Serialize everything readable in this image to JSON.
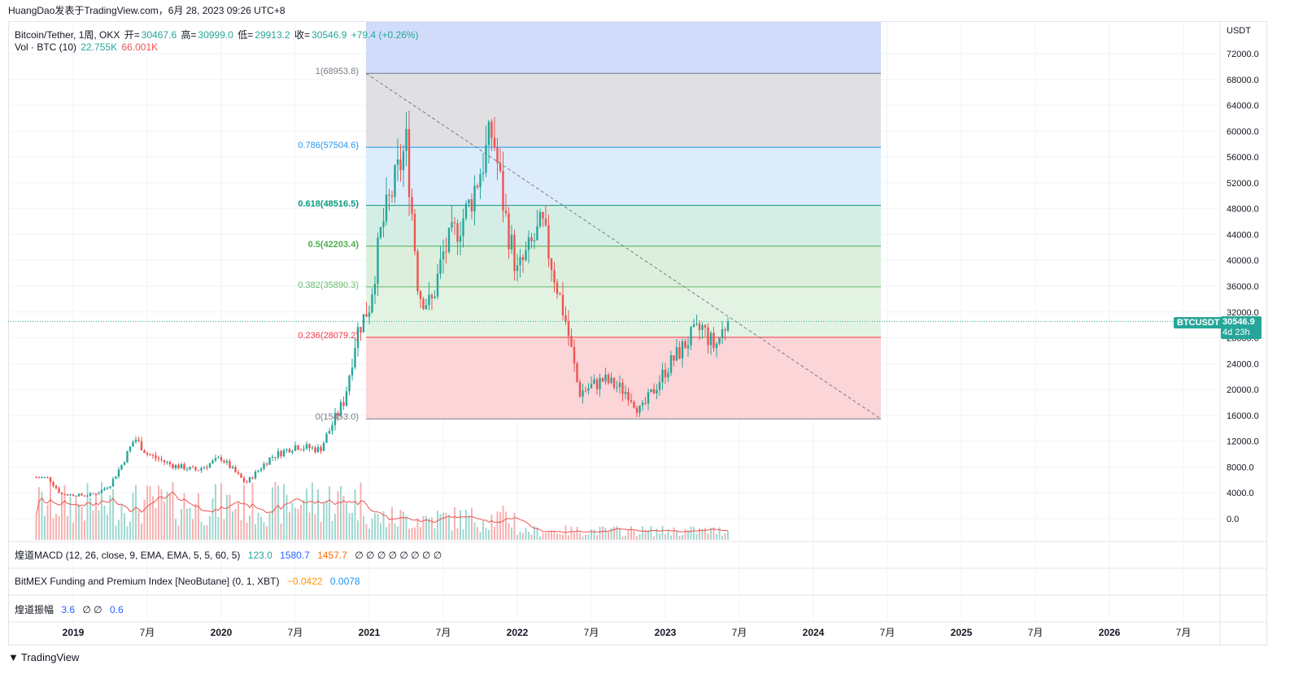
{
  "header": {
    "text": "HuangDao发表于TradingView.com，6月 28, 2023 09:26 UTC+8"
  },
  "legend": {
    "symbol": "Bitcoin/Tether, 1周, OKX",
    "open_label": "开=",
    "open": "30467.6",
    "high_label": "高=",
    "high": "30999.0",
    "low_label": "低=",
    "low": "29913.2",
    "close_label": "收=",
    "close": "30546.9",
    "change": "+79.4 (+0.26%)",
    "vol_label": "Vol · BTC (10)",
    "vol_value": "22.755K",
    "vol_ma": "66.001K"
  },
  "price_axis": {
    "currency": "USDT",
    "ticks": [
      "72000.0",
      "68000.0",
      "64000.0",
      "60000.0",
      "56000.0",
      "52000.0",
      "48000.0",
      "44000.0",
      "40000.0",
      "36000.0",
      "32000.0",
      "28000.0",
      "24000.0",
      "20000.0",
      "16000.0",
      "12000.0",
      "8000.0",
      "4000.0",
      "0.0"
    ],
    "last_price_symbol": "BTCUSDT",
    "last_price": "30546.9",
    "countdown": "4d 23h"
  },
  "time_axis": {
    "labels": [
      "2019",
      "7月",
      "2020",
      "7月",
      "2021",
      "7月",
      "2022",
      "7月",
      "2023",
      "7月",
      "2024",
      "7月",
      "2025",
      "7月",
      "2026",
      "7月"
    ]
  },
  "fib": {
    "levels": [
      {
        "label": "1(68953.8)",
        "ratio": 1,
        "price": 68953.8,
        "color": "#787b86",
        "fill": "#e0e0e3"
      },
      {
        "label": "0.786(57504.6)",
        "ratio": 0.786,
        "price": 57504.6,
        "color": "#2196f3",
        "fill": "#ddecfb"
      },
      {
        "label": "0.618(48516.5)",
        "ratio": 0.618,
        "price": 48516.5,
        "color": "#089981",
        "fill": "#d4eee6"
      },
      {
        "label": "0.5(42203.4)",
        "ratio": 0.5,
        "price": 42203.4,
        "color": "#4caf50",
        "fill": "#dcefdc"
      },
      {
        "label": "0.382(35890.3)",
        "ratio": 0.382,
        "price": 35890.3,
        "color": "#66bb6a",
        "fill": "#e3f3e3"
      },
      {
        "label": "0.236(28079.2)",
        "ratio": 0.236,
        "price": 28079.2,
        "color": "#f23645",
        "fill": "#fbd5d8"
      },
      {
        "label": "0(15453.0)",
        "ratio": 0,
        "price": 15453.0,
        "color": "#787b86",
        "fill": "#fbd5d8"
      }
    ],
    "top_extension_fill": "#d1dcfb"
  },
  "panes": {
    "macd": {
      "name": "煌道MACD (12, 26, close, 9, EMA, EMA, 5, 5, 60, 5)",
      "v1": "123.0",
      "v2": "1580.7",
      "v3": "1457.7",
      "empties": "∅ ∅ ∅ ∅ ∅ ∅ ∅ ∅"
    },
    "funding": {
      "name": "BitMEX Funding and Premium Index [NeoButane] (0, 1, XBT)",
      "v1": "−0.0422",
      "v2": "0.0078"
    },
    "amplitude": {
      "name": "煌道振幅",
      "v1": "3.6",
      "empties": "∅ ∅",
      "v2": "0.6"
    }
  },
  "footer": {
    "brand": "TradingView"
  },
  "colors": {
    "up": "#26a69a",
    "down": "#ef5350",
    "volume_ma": "#ef5350",
    "last_price": "#26a69a"
  },
  "chart_data": {
    "type": "candlestick",
    "timeframe": "1W",
    "ylim": [
      0,
      74000
    ],
    "x_range": [
      "2018-10",
      "2026-10"
    ],
    "weekly_close_path": [
      {
        "date": "2018-10",
        "close": 6400
      },
      {
        "date": "2018-11",
        "close": 6300
      },
      {
        "date": "2018-12",
        "close": 3800
      },
      {
        "date": "2019-02",
        "close": 3600
      },
      {
        "date": "2019-03",
        "close": 4000
      },
      {
        "date": "2019-04",
        "close": 5300
      },
      {
        "date": "2019-05",
        "close": 8600
      },
      {
        "date": "2019-06",
        "close": 12500
      },
      {
        "date": "2019-07",
        "close": 10000
      },
      {
        "date": "2019-09",
        "close": 8300
      },
      {
        "date": "2019-11",
        "close": 7500
      },
      {
        "date": "2020-01",
        "close": 9400
      },
      {
        "date": "2020-03",
        "close": 5500
      },
      {
        "date": "2020-05",
        "close": 9500
      },
      {
        "date": "2020-07",
        "close": 11300
      },
      {
        "date": "2020-09",
        "close": 10700
      },
      {
        "date": "2020-11",
        "close": 18500
      },
      {
        "date": "2020-12",
        "close": 28900
      },
      {
        "date": "2021-01",
        "close": 33000
      },
      {
        "date": "2021-02",
        "close": 45000
      },
      {
        "date": "2021-04",
        "close": 58000
      },
      {
        "date": "2021-05",
        "close": 35000
      },
      {
        "date": "2021-06",
        "close": 33000
      },
      {
        "date": "2021-07",
        "close": 41000
      },
      {
        "date": "2021-09",
        "close": 48000
      },
      {
        "date": "2021-11",
        "close": 60000
      },
      {
        "date": "2021-12",
        "close": 47000
      },
      {
        "date": "2022-01",
        "close": 38000
      },
      {
        "date": "2022-03",
        "close": 45500
      },
      {
        "date": "2022-05",
        "close": 30000
      },
      {
        "date": "2022-06",
        "close": 19500
      },
      {
        "date": "2022-08",
        "close": 21500
      },
      {
        "date": "2022-10",
        "close": 19500
      },
      {
        "date": "2022-11",
        "close": 16500
      },
      {
        "date": "2023-01",
        "close": 23000
      },
      {
        "date": "2023-03",
        "close": 28000
      },
      {
        "date": "2023-04",
        "close": 29500
      },
      {
        "date": "2023-05",
        "close": 26500
      },
      {
        "date": "2023-06",
        "close": 30546.9
      }
    ]
  }
}
